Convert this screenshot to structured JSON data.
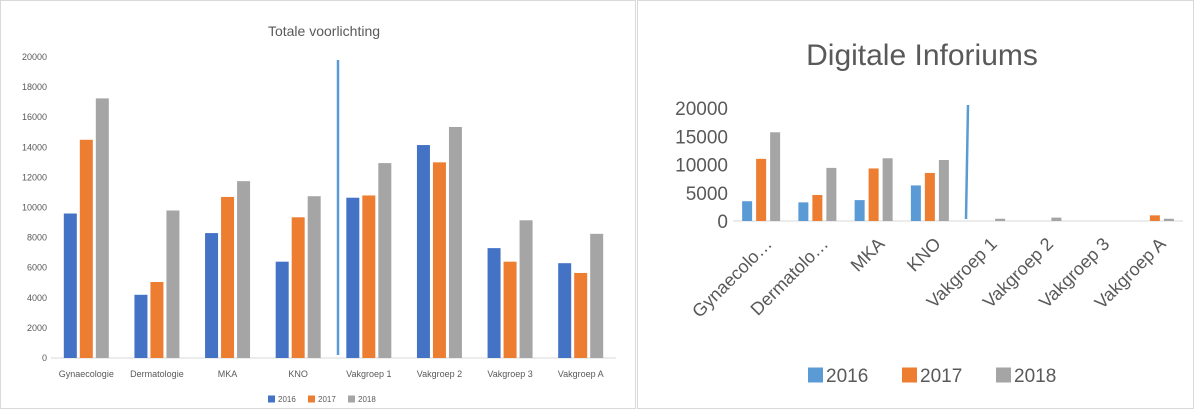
{
  "colors": {
    "2016": "#4472c4",
    "2017": "#ed7d31",
    "2018": "#a5a5a5",
    "2016_right": "#5b9bd5",
    "divider_left": "#5b9bd5",
    "divider_right": "#5b9bd5",
    "grid": "#d9d9d9"
  },
  "chart_data": [
    {
      "type": "bar",
      "title": "Totale voorlichting",
      "categories": [
        "Gynaecologie",
        "Dermatologie",
        "MKA",
        "KNO",
        "Vakgroep 1",
        "Vakgroep 2",
        "Vakgroep 3",
        "Vakgroep A"
      ],
      "series": [
        {
          "name": "2016",
          "values": [
            9600,
            4200,
            8300,
            6400,
            10650,
            14150,
            7300,
            6300
          ]
        },
        {
          "name": "2017",
          "values": [
            14500,
            5050,
            10700,
            9350,
            10800,
            13000,
            6400,
            5650
          ]
        },
        {
          "name": "2018",
          "values": [
            17250,
            9800,
            11750,
            10750,
            12950,
            15350,
            9150,
            8250
          ]
        }
      ],
      "ylim": [
        0,
        20000
      ],
      "yticks": [
        "0",
        "2000",
        "4000",
        "6000",
        "8000",
        "10000",
        "12000",
        "14000",
        "16000",
        "18000",
        "20000"
      ],
      "grid": false,
      "legend": "bottom"
    },
    {
      "type": "bar",
      "title": "Digitale Inforiums",
      "categories": [
        "Gynaecolo…",
        "Dermatolo…",
        "MKA",
        "KNO",
        "Vakgroep 1",
        "Vakgroep 2",
        "Vakgroep 3",
        "Vakgroep A"
      ],
      "series": [
        {
          "name": "2016",
          "values": [
            3500,
            3300,
            3700,
            6300,
            0,
            0,
            0,
            0
          ]
        },
        {
          "name": "2017",
          "values": [
            11000,
            4600,
            9300,
            8500,
            0,
            0,
            0,
            1000
          ]
        },
        {
          "name": "2018",
          "values": [
            15700,
            9400,
            11100,
            10800,
            400,
            600,
            0,
            400
          ]
        }
      ],
      "ylim": [
        0,
        20000
      ],
      "yticks": [
        "0",
        "5000",
        "10000",
        "15000",
        "20000"
      ],
      "grid": false,
      "legend": "bottom"
    }
  ]
}
